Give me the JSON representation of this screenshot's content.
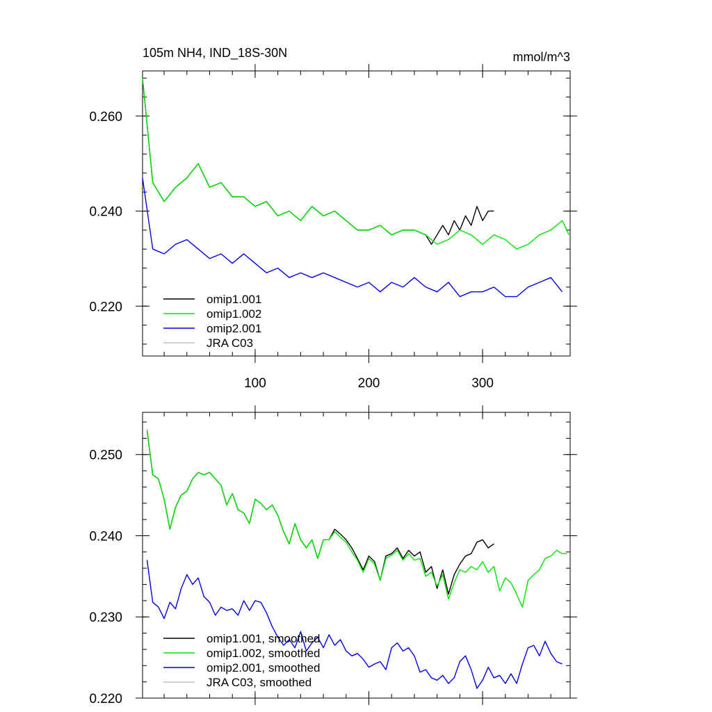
{
  "colors": {
    "omip1_001": "#000000",
    "omip1_002": "#00e600",
    "omip2_001": "#0000e6",
    "jra_c03": "#bfbfbf"
  },
  "chart_data": [
    {
      "type": "line",
      "title": "105m NH4, IND_18S-30N",
      "units": "mmol/m^3",
      "xlim": [
        1,
        377
      ],
      "ylim": [
        0.2095,
        0.2695
      ],
      "xticks": [
        100,
        200,
        300
      ],
      "xtick_labels": [
        "100",
        "200",
        "300"
      ],
      "yticks": [
        0.22,
        0.24,
        0.26
      ],
      "ytick_labels": [
        "0.220",
        "0.240",
        "0.260"
      ],
      "legend_position": "bottom-left",
      "legend": [
        "omip1.001",
        "omip1.002",
        "omip2.001",
        "JRA C03"
      ],
      "series": [
        {
          "name": "omip1.001",
          "color_key": "omip1_001",
          "x": [
            1,
            10,
            20,
            30,
            40,
            50,
            60,
            70,
            80,
            90,
            100,
            110,
            120,
            130,
            140,
            150,
            160,
            170,
            180,
            190,
            200,
            210,
            220,
            230,
            240,
            250,
            255,
            260,
            265,
            270,
            275,
            280,
            285,
            290,
            295,
            300,
            305,
            310
          ],
          "y": [
            0.268,
            0.246,
            0.242,
            0.245,
            0.247,
            0.25,
            0.245,
            0.246,
            0.243,
            0.243,
            0.241,
            0.242,
            0.239,
            0.24,
            0.238,
            0.241,
            0.239,
            0.24,
            0.238,
            0.236,
            0.236,
            0.237,
            0.235,
            0.236,
            0.236,
            0.235,
            0.233,
            0.235,
            0.237,
            0.235,
            0.238,
            0.236,
            0.239,
            0.237,
            0.241,
            0.238,
            0.24,
            0.24
          ]
        },
        {
          "name": "omip1.002",
          "color_key": "omip1_002",
          "x": [
            1,
            10,
            20,
            30,
            40,
            50,
            60,
            70,
            80,
            90,
            100,
            110,
            120,
            130,
            140,
            150,
            160,
            170,
            180,
            190,
            200,
            210,
            220,
            230,
            240,
            250,
            260,
            270,
            280,
            290,
            300,
            310,
            320,
            330,
            340,
            350,
            360,
            370,
            376
          ],
          "y": [
            0.268,
            0.246,
            0.242,
            0.245,
            0.247,
            0.25,
            0.245,
            0.246,
            0.243,
            0.243,
            0.241,
            0.242,
            0.239,
            0.24,
            0.238,
            0.241,
            0.239,
            0.24,
            0.238,
            0.236,
            0.236,
            0.237,
            0.235,
            0.236,
            0.236,
            0.235,
            0.233,
            0.234,
            0.236,
            0.235,
            0.233,
            0.235,
            0.234,
            0.232,
            0.233,
            0.235,
            0.236,
            0.238,
            0.235
          ]
        },
        {
          "name": "omip2.001",
          "color_key": "omip2_001",
          "x": [
            1,
            10,
            20,
            30,
            40,
            50,
            60,
            70,
            80,
            90,
            100,
            110,
            120,
            130,
            140,
            150,
            160,
            170,
            180,
            190,
            200,
            210,
            220,
            230,
            240,
            250,
            260,
            270,
            280,
            290,
            300,
            310,
            320,
            330,
            340,
            350,
            360,
            370
          ],
          "y": [
            0.247,
            0.232,
            0.231,
            0.233,
            0.234,
            0.232,
            0.23,
            0.231,
            0.229,
            0.231,
            0.229,
            0.227,
            0.228,
            0.226,
            0.227,
            0.226,
            0.227,
            0.226,
            0.225,
            0.224,
            0.225,
            0.223,
            0.225,
            0.224,
            0.226,
            0.224,
            0.223,
            0.225,
            0.222,
            0.223,
            0.223,
            0.224,
            0.222,
            0.222,
            0.224,
            0.225,
            0.226,
            0.223
          ]
        },
        {
          "name": "JRA C03",
          "color_key": "jra_c03",
          "x": [],
          "y": []
        }
      ]
    },
    {
      "type": "line",
      "title": "",
      "xlim": [
        1,
        377
      ],
      "ylim": [
        0.22,
        0.2552
      ],
      "xticks": [
        100,
        200,
        300
      ],
      "xtick_labels": [
        "",
        "",
        ""
      ],
      "yticks": [
        0.22,
        0.23,
        0.24,
        0.25
      ],
      "ytick_labels": [
        "0.220",
        "0.230",
        "0.240",
        "0.250"
      ],
      "legend_position": "bottom-left",
      "legend": [
        "omip1.001, smoothed",
        "omip1.002, smoothed",
        "omip2.001, smoothed",
        "JRA C03, smoothed"
      ],
      "series": [
        {
          "name": "omip1.001, smoothed",
          "color_key": "omip1_001",
          "x": [
            5,
            10,
            15,
            20,
            25,
            30,
            35,
            40,
            45,
            50,
            55,
            60,
            65,
            70,
            75,
            80,
            85,
            90,
            95,
            100,
            105,
            110,
            115,
            120,
            125,
            130,
            135,
            140,
            145,
            150,
            155,
            160,
            165,
            170,
            175,
            180,
            185,
            190,
            195,
            200,
            205,
            210,
            215,
            220,
            225,
            230,
            235,
            240,
            245,
            250,
            255,
            260,
            265,
            270,
            275,
            280,
            285,
            290,
            295,
            300,
            305,
            310
          ],
          "y": [
            0.253,
            0.2475,
            0.247,
            0.2445,
            0.2408,
            0.2435,
            0.245,
            0.2455,
            0.247,
            0.2478,
            0.2475,
            0.2478,
            0.247,
            0.2462,
            0.2438,
            0.2452,
            0.2432,
            0.2428,
            0.2415,
            0.2445,
            0.244,
            0.2432,
            0.2438,
            0.2425,
            0.2405,
            0.239,
            0.2415,
            0.2395,
            0.2385,
            0.2395,
            0.2372,
            0.2395,
            0.2395,
            0.2408,
            0.2402,
            0.2395,
            0.2385,
            0.2372,
            0.2358,
            0.2375,
            0.2368,
            0.2345,
            0.2375,
            0.2378,
            0.2385,
            0.2372,
            0.2382,
            0.2375,
            0.238,
            0.2355,
            0.2362,
            0.2335,
            0.2358,
            0.2328,
            0.2352,
            0.2365,
            0.2375,
            0.2378,
            0.2392,
            0.2395,
            0.2385,
            0.239
          ]
        },
        {
          "name": "omip1.002, smoothed",
          "color_key": "omip1_002",
          "x": [
            5,
            10,
            15,
            20,
            25,
            30,
            35,
            40,
            45,
            50,
            55,
            60,
            65,
            70,
            75,
            80,
            85,
            90,
            95,
            100,
            105,
            110,
            115,
            120,
            125,
            130,
            135,
            140,
            145,
            150,
            155,
            160,
            165,
            170,
            175,
            180,
            185,
            190,
            195,
            200,
            205,
            210,
            215,
            220,
            225,
            230,
            235,
            240,
            245,
            250,
            255,
            260,
            265,
            270,
            275,
            280,
            285,
            290,
            295,
            300,
            305,
            310,
            315,
            320,
            325,
            330,
            335,
            340,
            345,
            350,
            355,
            360,
            365,
            370,
            374
          ],
          "y": [
            0.253,
            0.2475,
            0.247,
            0.2445,
            0.2408,
            0.2435,
            0.245,
            0.2455,
            0.247,
            0.2478,
            0.2475,
            0.2478,
            0.247,
            0.2462,
            0.2438,
            0.2452,
            0.2432,
            0.2428,
            0.2415,
            0.2445,
            0.244,
            0.2432,
            0.2438,
            0.2425,
            0.2405,
            0.239,
            0.2415,
            0.2395,
            0.2385,
            0.2395,
            0.2372,
            0.2395,
            0.2395,
            0.2405,
            0.2398,
            0.2392,
            0.238,
            0.237,
            0.2355,
            0.2372,
            0.2365,
            0.2345,
            0.2372,
            0.2376,
            0.2382,
            0.237,
            0.2378,
            0.237,
            0.2372,
            0.235,
            0.2355,
            0.2338,
            0.2352,
            0.2322,
            0.2342,
            0.2358,
            0.2355,
            0.2362,
            0.2358,
            0.2368,
            0.2355,
            0.2362,
            0.2332,
            0.2348,
            0.2342,
            0.2328,
            0.2312,
            0.2345,
            0.2352,
            0.2358,
            0.2372,
            0.2375,
            0.2382,
            0.2378,
            0.2378
          ]
        },
        {
          "name": "omip2.001, smoothed",
          "color_key": "omip2_001",
          "x": [
            5,
            10,
            15,
            20,
            25,
            30,
            35,
            40,
            45,
            50,
            55,
            60,
            65,
            70,
            75,
            80,
            85,
            90,
            95,
            100,
            105,
            110,
            115,
            120,
            125,
            130,
            135,
            140,
            145,
            150,
            155,
            160,
            165,
            170,
            175,
            180,
            185,
            190,
            195,
            200,
            205,
            210,
            215,
            220,
            225,
            230,
            235,
            240,
            245,
            250,
            255,
            260,
            265,
            270,
            275,
            280,
            285,
            290,
            295,
            300,
            305,
            310,
            315,
            320,
            325,
            330,
            335,
            340,
            345,
            350,
            355,
            360,
            365,
            370
          ],
          "y": [
            0.237,
            0.2318,
            0.2312,
            0.2298,
            0.2318,
            0.231,
            0.2335,
            0.2352,
            0.234,
            0.2348,
            0.2325,
            0.2318,
            0.2302,
            0.2312,
            0.2308,
            0.231,
            0.2302,
            0.232,
            0.2308,
            0.232,
            0.2318,
            0.2305,
            0.2288,
            0.2275,
            0.2265,
            0.2272,
            0.2262,
            0.2282,
            0.2258,
            0.2268,
            0.2275,
            0.2262,
            0.2278,
            0.2265,
            0.2272,
            0.2258,
            0.2252,
            0.2255,
            0.2248,
            0.2238,
            0.2242,
            0.2245,
            0.2235,
            0.2262,
            0.2268,
            0.2258,
            0.2262,
            0.2252,
            0.2232,
            0.2235,
            0.2225,
            0.2222,
            0.2228,
            0.2218,
            0.2225,
            0.2245,
            0.2252,
            0.2235,
            0.2212,
            0.2222,
            0.2238,
            0.2225,
            0.2228,
            0.2218,
            0.223,
            0.2218,
            0.2242,
            0.2262,
            0.2265,
            0.2252,
            0.227,
            0.2255,
            0.2245,
            0.2242
          ]
        },
        {
          "name": "JRA C03, smoothed",
          "color_key": "jra_c03",
          "x": [],
          "y": []
        }
      ]
    }
  ]
}
